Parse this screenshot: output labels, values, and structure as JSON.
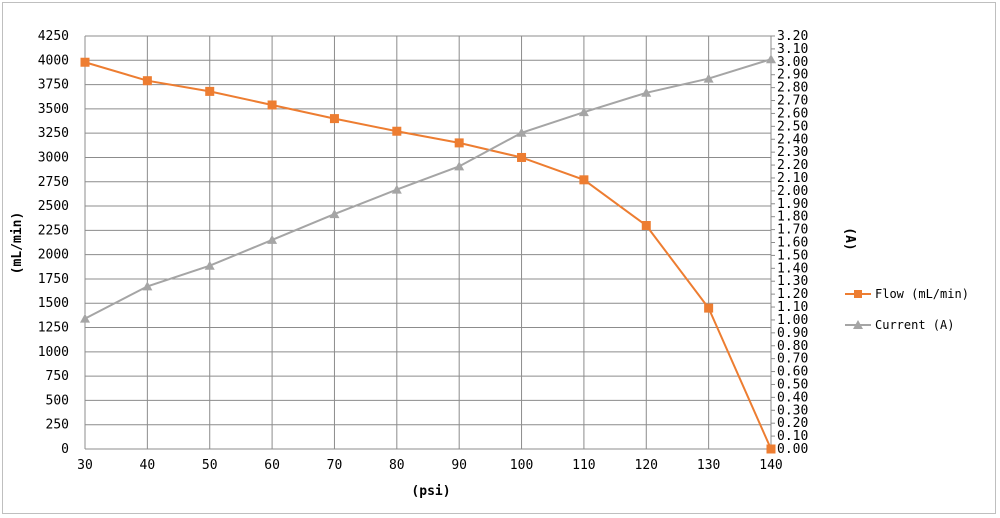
{
  "chart_data": {
    "type": "line",
    "x": [
      30,
      40,
      50,
      60,
      70,
      80,
      90,
      100,
      110,
      120,
      130,
      140
    ],
    "xlabel": "(psi)",
    "ylabel": "(mL/min)",
    "y2label": "(A)",
    "xlim": [
      30,
      140
    ],
    "ylim": [
      0,
      4250
    ],
    "y2lim": [
      0,
      3.2
    ],
    "xticks": [
      "30",
      "40",
      "50",
      "60",
      "70",
      "80",
      "90",
      "100",
      "110",
      "120",
      "130",
      "140"
    ],
    "yticks": [
      "0",
      "250",
      "500",
      "750",
      "1000",
      "1250",
      "1500",
      "1750",
      "2000",
      "2250",
      "2500",
      "2750",
      "3000",
      "3250",
      "3500",
      "3750",
      "4000",
      "4250"
    ],
    "y2ticks": [
      "0.00",
      "0.10",
      "0.20",
      "0.30",
      "0.40",
      "0.50",
      "0.60",
      "0.70",
      "0.80",
      "0.90",
      "1.00",
      "1.10",
      "1.20",
      "1.30",
      "1.40",
      "1.50",
      "1.60",
      "1.70",
      "1.80",
      "1.90",
      "2.00",
      "2.10",
      "2.20",
      "2.30",
      "2.40",
      "2.50",
      "2.60",
      "2.70",
      "2.80",
      "2.90",
      "3.00",
      "3.10",
      "3.20"
    ],
    "grid": true,
    "legend_position": "right",
    "series": [
      {
        "name": "Flow (mL/min)",
        "axis": "left",
        "color": "#ED7D31",
        "marker": "square",
        "values": [
          3980,
          3790,
          3680,
          3540,
          3400,
          3270,
          3150,
          3000,
          2770,
          2300,
          1450,
          0
        ]
      },
      {
        "name": "Current (A)",
        "axis": "right",
        "color": "#A5A5A5",
        "marker": "triangle",
        "values": [
          1.01,
          1.26,
          1.42,
          1.62,
          1.82,
          2.01,
          2.19,
          2.45,
          2.61,
          2.76,
          2.87,
          3.02
        ]
      }
    ]
  }
}
